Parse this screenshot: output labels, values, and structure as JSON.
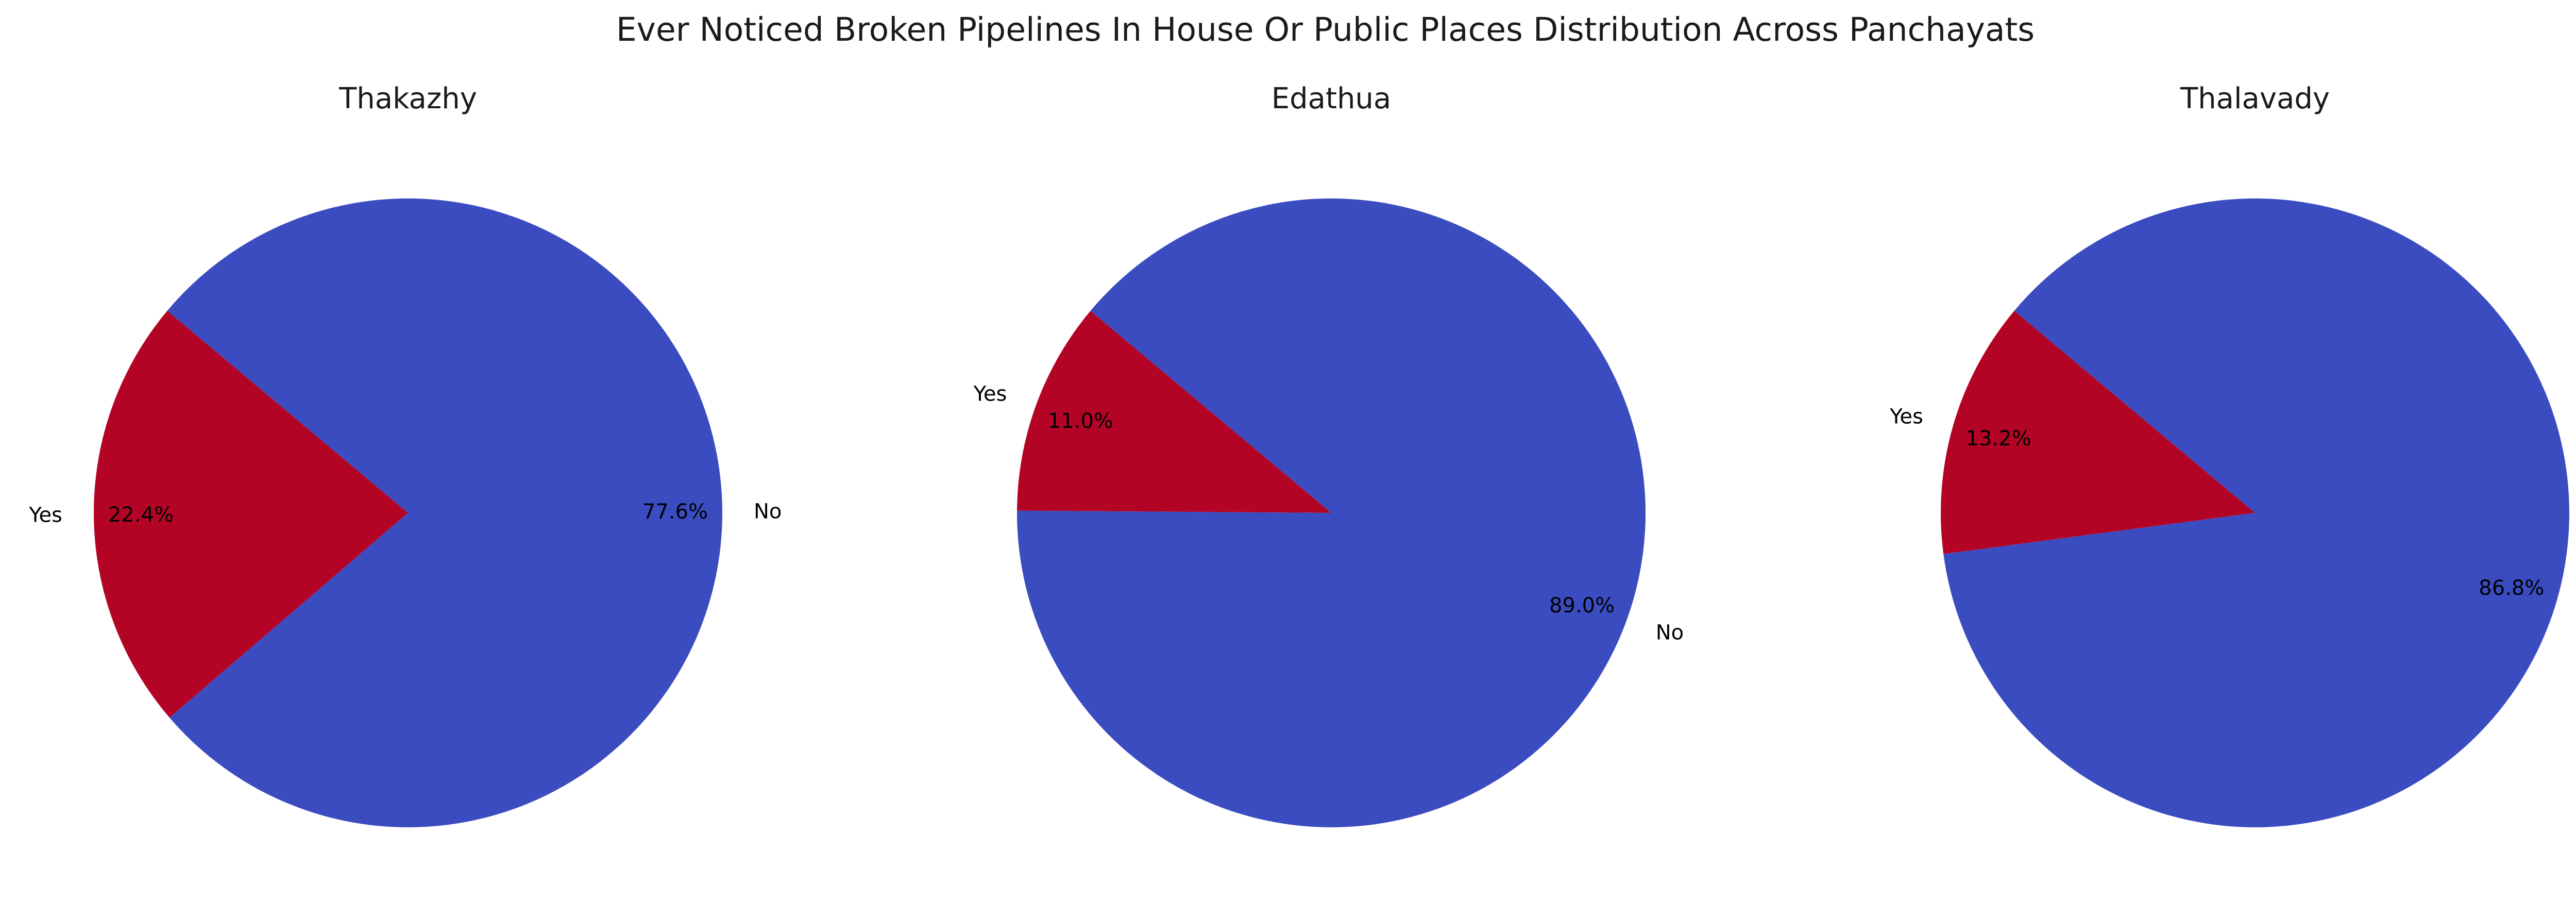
{
  "figure_title": "Ever Noticed Broken Pipelines In House Or Public Places Distribution Across Panchayats",
  "colors": {
    "Yes": "#b40426",
    "No": "#3b4cc0"
  },
  "chart_data": [
    {
      "type": "pie",
      "title": "Thakazhy",
      "categories": [
        "Yes",
        "No"
      ],
      "values": [
        22.4,
        77.6
      ],
      "pct_labels": [
        "22.4%",
        "77.6%"
      ]
    },
    {
      "type": "pie",
      "title": "Edathua",
      "categories": [
        "Yes",
        "No"
      ],
      "values": [
        11.0,
        89.0
      ],
      "pct_labels": [
        "11.0%",
        "89.0%"
      ]
    },
    {
      "type": "pie",
      "title": "Thalavady",
      "categories": [
        "Yes",
        "No"
      ],
      "values": [
        13.2,
        86.8
      ],
      "pct_labels": [
        "13.2%",
        "86.8%"
      ]
    }
  ]
}
